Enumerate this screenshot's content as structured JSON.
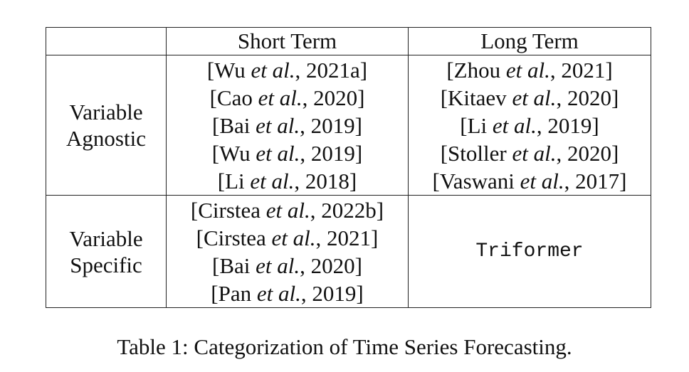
{
  "table": {
    "header": [
      "",
      "Short Term",
      "Long Term"
    ],
    "rows": [
      {
        "label": [
          "Variable",
          "Agnostic"
        ],
        "short_term": [
          {
            "open": "[Wu ",
            "etal": "et al.",
            "close": ", 2021a]"
          },
          {
            "open": "[Cao ",
            "etal": "et al.",
            "close": ", 2020]"
          },
          {
            "open": "[Bai ",
            "etal": "et al.",
            "close": ", 2019]"
          },
          {
            "open": "[Wu ",
            "etal": "et al.",
            "close": ", 2019]"
          },
          {
            "open": "[Li ",
            "etal": "et al.",
            "close": ", 2018]"
          }
        ],
        "long_term": [
          {
            "open": "[Zhou ",
            "etal": "et al.",
            "close": ", 2021]"
          },
          {
            "open": "[Kitaev ",
            "etal": "et al.",
            "close": ", 2020]"
          },
          {
            "open": "[Li ",
            "etal": "et al.",
            "close": ", 2019]"
          },
          {
            "open": "[Stoller ",
            "etal": "et al.",
            "close": ", 2020]"
          },
          {
            "open": "[Vaswani ",
            "etal": "et al.",
            "close": ", 2017]"
          }
        ]
      },
      {
        "label": [
          "Variable",
          "Specific"
        ],
        "short_term": [
          {
            "open": "[Cirstea ",
            "etal": "et al.",
            "close": ", 2022b]"
          },
          {
            "open": "[Cirstea ",
            "etal": "et al.",
            "close": ", 2021]"
          },
          {
            "open": "[Bai ",
            "etal": "et al.",
            "close": ", 2020]"
          },
          {
            "open": "[Pan ",
            "etal": "et al.",
            "close": ", 2019]"
          }
        ],
        "long_term_text": "Triformer"
      }
    ]
  },
  "caption": "Table 1: Categorization of Time Series Forecasting."
}
